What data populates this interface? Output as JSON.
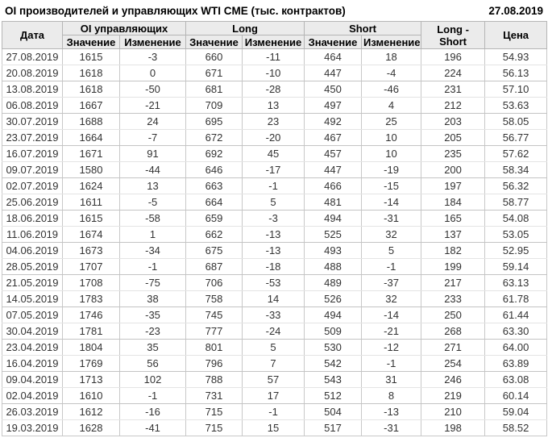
{
  "header": {
    "title": "OI производителей и управляющих WTI CME (тыс. контрактов)",
    "date": "27.08.2019"
  },
  "table": {
    "columns": {
      "date": "Дата",
      "oi_group": "OI управляющих",
      "long_group": "Long",
      "short_group": "Short",
      "value": "Значение",
      "change": "Изменение",
      "long_short": "Long - Short",
      "price": "Цена"
    },
    "rows": [
      {
        "date": "27.08.2019",
        "oi": "1615",
        "oi_chg": "-3",
        "long": "660",
        "long_chg": "-11",
        "short": "464",
        "short_chg": "18",
        "long_short": "196",
        "price": "54.93"
      },
      {
        "date": "20.08.2019",
        "oi": "1618",
        "oi_chg": "0",
        "long": "671",
        "long_chg": "-10",
        "short": "447",
        "short_chg": "-4",
        "long_short": "224",
        "price": "56.13"
      },
      {
        "date": "13.08.2019",
        "oi": "1618",
        "oi_chg": "-50",
        "long": "681",
        "long_chg": "-28",
        "short": "450",
        "short_chg": "-46",
        "long_short": "231",
        "price": "57.10"
      },
      {
        "date": "06.08.2019",
        "oi": "1667",
        "oi_chg": "-21",
        "long": "709",
        "long_chg": "13",
        "short": "497",
        "short_chg": "4",
        "long_short": "212",
        "price": "53.63"
      },
      {
        "date": "30.07.2019",
        "oi": "1688",
        "oi_chg": "24",
        "long": "695",
        "long_chg": "23",
        "short": "492",
        "short_chg": "25",
        "long_short": "203",
        "price": "58.05"
      },
      {
        "date": "23.07.2019",
        "oi": "1664",
        "oi_chg": "-7",
        "long": "672",
        "long_chg": "-20",
        "short": "467",
        "short_chg": "10",
        "long_short": "205",
        "price": "56.77"
      },
      {
        "date": "16.07.2019",
        "oi": "1671",
        "oi_chg": "91",
        "long": "692",
        "long_chg": "45",
        "short": "457",
        "short_chg": "10",
        "long_short": "235",
        "price": "57.62"
      },
      {
        "date": "09.07.2019",
        "oi": "1580",
        "oi_chg": "-44",
        "long": "646",
        "long_chg": "-17",
        "short": "447",
        "short_chg": "-19",
        "long_short": "200",
        "price": "58.34"
      },
      {
        "date": "02.07.2019",
        "oi": "1624",
        "oi_chg": "13",
        "long": "663",
        "long_chg": "-1",
        "short": "466",
        "short_chg": "-15",
        "long_short": "197",
        "price": "56.32"
      },
      {
        "date": "25.06.2019",
        "oi": "1611",
        "oi_chg": "-5",
        "long": "664",
        "long_chg": "5",
        "short": "481",
        "short_chg": "-14",
        "long_short": "184",
        "price": "58.77"
      },
      {
        "date": "18.06.2019",
        "oi": "1615",
        "oi_chg": "-58",
        "long": "659",
        "long_chg": "-3",
        "short": "494",
        "short_chg": "-31",
        "long_short": "165",
        "price": "54.08"
      },
      {
        "date": "11.06.2019",
        "oi": "1674",
        "oi_chg": "1",
        "long": "662",
        "long_chg": "-13",
        "short": "525",
        "short_chg": "32",
        "long_short": "137",
        "price": "53.05"
      },
      {
        "date": "04.06.2019",
        "oi": "1673",
        "oi_chg": "-34",
        "long": "675",
        "long_chg": "-13",
        "short": "493",
        "short_chg": "5",
        "long_short": "182",
        "price": "52.95"
      },
      {
        "date": "28.05.2019",
        "oi": "1707",
        "oi_chg": "-1",
        "long": "687",
        "long_chg": "-18",
        "short": "488",
        "short_chg": "-1",
        "long_short": "199",
        "price": "59.14"
      },
      {
        "date": "21.05.2019",
        "oi": "1708",
        "oi_chg": "-75",
        "long": "706",
        "long_chg": "-53",
        "short": "489",
        "short_chg": "-37",
        "long_short": "217",
        "price": "63.13"
      },
      {
        "date": "14.05.2019",
        "oi": "1783",
        "oi_chg": "38",
        "long": "758",
        "long_chg": "14",
        "short": "526",
        "short_chg": "32",
        "long_short": "233",
        "price": "61.78"
      },
      {
        "date": "07.05.2019",
        "oi": "1746",
        "oi_chg": "-35",
        "long": "745",
        "long_chg": "-33",
        "short": "494",
        "short_chg": "-14",
        "long_short": "250",
        "price": "61.44"
      },
      {
        "date": "30.04.2019",
        "oi": "1781",
        "oi_chg": "-23",
        "long": "777",
        "long_chg": "-24",
        "short": "509",
        "short_chg": "-21",
        "long_short": "268",
        "price": "63.30"
      },
      {
        "date": "23.04.2019",
        "oi": "1804",
        "oi_chg": "35",
        "long": "801",
        "long_chg": "5",
        "short": "530",
        "short_chg": "-12",
        "long_short": "271",
        "price": "64.00"
      },
      {
        "date": "16.04.2019",
        "oi": "1769",
        "oi_chg": "56",
        "long": "796",
        "long_chg": "7",
        "short": "542",
        "short_chg": "-1",
        "long_short": "254",
        "price": "63.89"
      },
      {
        "date": "09.04.2019",
        "oi": "1713",
        "oi_chg": "102",
        "long": "788",
        "long_chg": "57",
        "short": "543",
        "short_chg": "31",
        "long_short": "246",
        "price": "63.08"
      },
      {
        "date": "02.04.2019",
        "oi": "1610",
        "oi_chg": "-1",
        "long": "731",
        "long_chg": "17",
        "short": "512",
        "short_chg": "8",
        "long_short": "219",
        "price": "60.14"
      },
      {
        "date": "26.03.2019",
        "oi": "1612",
        "oi_chg": "-16",
        "long": "715",
        "long_chg": "-1",
        "short": "504",
        "short_chg": "-13",
        "long_short": "210",
        "price": "59.04"
      },
      {
        "date": "19.03.2019",
        "oi": "1628",
        "oi_chg": "-41",
        "long": "715",
        "long_chg": "15",
        "short": "517",
        "short_chg": "-31",
        "long_short": "198",
        "price": "58.52"
      }
    ]
  },
  "colors": {
    "positive_change": "#0a960a",
    "negative_change": "#e10000",
    "header_background": "#ebebeb"
  }
}
